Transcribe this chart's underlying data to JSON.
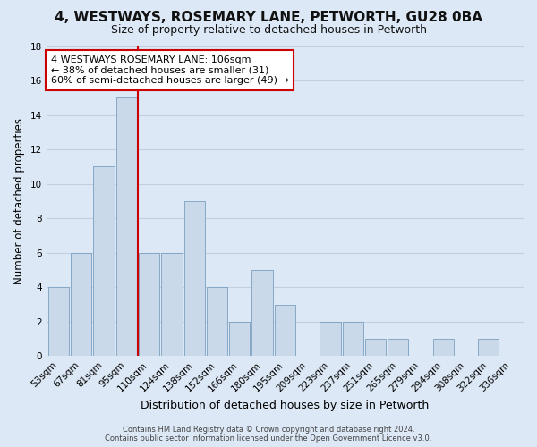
{
  "title": "4, WESTWAYS, ROSEMARY LANE, PETWORTH, GU28 0BA",
  "subtitle": "Size of property relative to detached houses in Petworth",
  "xlabel": "Distribution of detached houses by size in Petworth",
  "ylabel": "Number of detached properties",
  "bar_labels": [
    "53sqm",
    "67sqm",
    "81sqm",
    "95sqm",
    "110sqm",
    "124sqm",
    "138sqm",
    "152sqm",
    "166sqm",
    "180sqm",
    "195sqm",
    "209sqm",
    "223sqm",
    "237sqm",
    "251sqm",
    "265sqm",
    "279sqm",
    "294sqm",
    "308sqm",
    "322sqm",
    "336sqm"
  ],
  "bar_values": [
    4,
    6,
    11,
    15,
    6,
    6,
    9,
    4,
    2,
    5,
    3,
    0,
    2,
    2,
    1,
    1,
    0,
    1,
    0,
    1,
    0
  ],
  "bar_color": "#c9d9ea",
  "bar_edge_color": "#7ba0c0",
  "vline_color": "#cc0000",
  "vline_x_index": 3.5,
  "ylim": [
    0,
    18
  ],
  "yticks": [
    0,
    2,
    4,
    6,
    8,
    10,
    12,
    14,
    16,
    18
  ],
  "annotation_text": "4 WESTWAYS ROSEMARY LANE: 106sqm\n← 38% of detached houses are smaller (31)\n60% of semi-detached houses are larger (49) →",
  "annotation_box_facecolor": "#ffffff",
  "annotation_box_edgecolor": "#cc0000",
  "footer_line1": "Contains HM Land Registry data © Crown copyright and database right 2024.",
  "footer_line2": "Contains public sector information licensed under the Open Government Licence v3.0.",
  "background_color": "#dce8f5",
  "plot_bg_color": "#dce8f5",
  "grid_color": "#c0d0e0",
  "title_fontsize": 11,
  "subtitle_fontsize": 9,
  "xlabel_fontsize": 9,
  "ylabel_fontsize": 8.5,
  "tick_fontsize": 7.5,
  "annotation_fontsize": 8,
  "footer_fontsize": 6
}
